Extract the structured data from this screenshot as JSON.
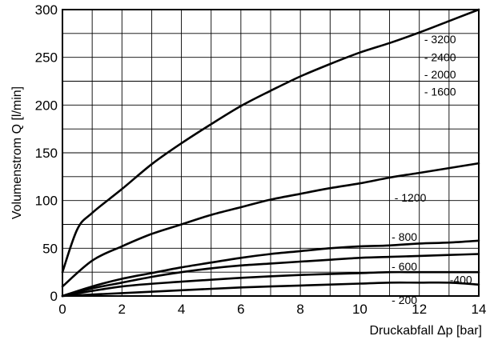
{
  "chart_data": {
    "type": "line",
    "xlabel": "Druckabfall Δp [bar]",
    "ylabel": "Volumenstrom Q [l/min]",
    "xlim": [
      0,
      14
    ],
    "ylim": [
      0,
      300
    ],
    "xticks": [
      0,
      2,
      4,
      6,
      8,
      10,
      12,
      14
    ],
    "yticks": [
      0,
      50,
      100,
      150,
      200,
      250,
      300
    ],
    "grid": true,
    "line_color": "#000000",
    "series": [
      {
        "name": "- 3200",
        "x": [
          0,
          0.5,
          1,
          2,
          3,
          4,
          5,
          6,
          7,
          8,
          9,
          10,
          11,
          12,
          13,
          14
        ],
        "y": [
          25,
          70,
          87,
          112,
          138,
          160,
          180,
          199,
          215,
          230,
          243,
          255,
          265,
          276,
          288,
          300
        ]
      },
      {
        "name": "- 2400",
        "x": [],
        "y": []
      },
      {
        "name": "- 2000",
        "x": [],
        "y": []
      },
      {
        "name": "- 1600",
        "x": [],
        "y": []
      },
      {
        "name": "- 1200",
        "x": [
          0,
          1,
          2,
          3,
          4,
          5,
          6,
          7,
          8,
          9,
          10,
          11,
          12,
          13,
          14
        ],
        "y": [
          10,
          37,
          52,
          65,
          75,
          85,
          93,
          101,
          107,
          113,
          118,
          124,
          129,
          134,
          139
        ]
      },
      {
        "name": "- 800",
        "x": [
          0,
          1,
          2,
          3,
          4,
          5,
          6,
          7,
          8,
          9,
          10,
          11,
          12,
          13,
          14
        ],
        "y": [
          0,
          10,
          18,
          24,
          30,
          35,
          40,
          44,
          47,
          50,
          52,
          53,
          55,
          56,
          58
        ]
      },
      {
        "name": "- 600",
        "x": [
          0,
          1,
          2,
          3,
          4,
          5,
          6,
          7,
          8,
          9,
          10,
          11,
          12,
          13,
          14
        ],
        "y": [
          0,
          8,
          14,
          20,
          25,
          29,
          32,
          34,
          36,
          38,
          40,
          41,
          42,
          43,
          44
        ]
      },
      {
        "name": "-400",
        "x": [
          0,
          2,
          4,
          6,
          8,
          10,
          11,
          12,
          13,
          14
        ],
        "y": [
          0,
          10,
          15,
          19,
          22,
          24,
          25,
          25,
          25,
          25
        ]
      },
      {
        "name": "- 200",
        "x": [
          0,
          2,
          4,
          6,
          8,
          10,
          11,
          12,
          13,
          14
        ],
        "y": [
          0,
          3,
          6,
          9,
          11,
          13,
          14,
          14,
          14,
          12
        ]
      }
    ]
  }
}
